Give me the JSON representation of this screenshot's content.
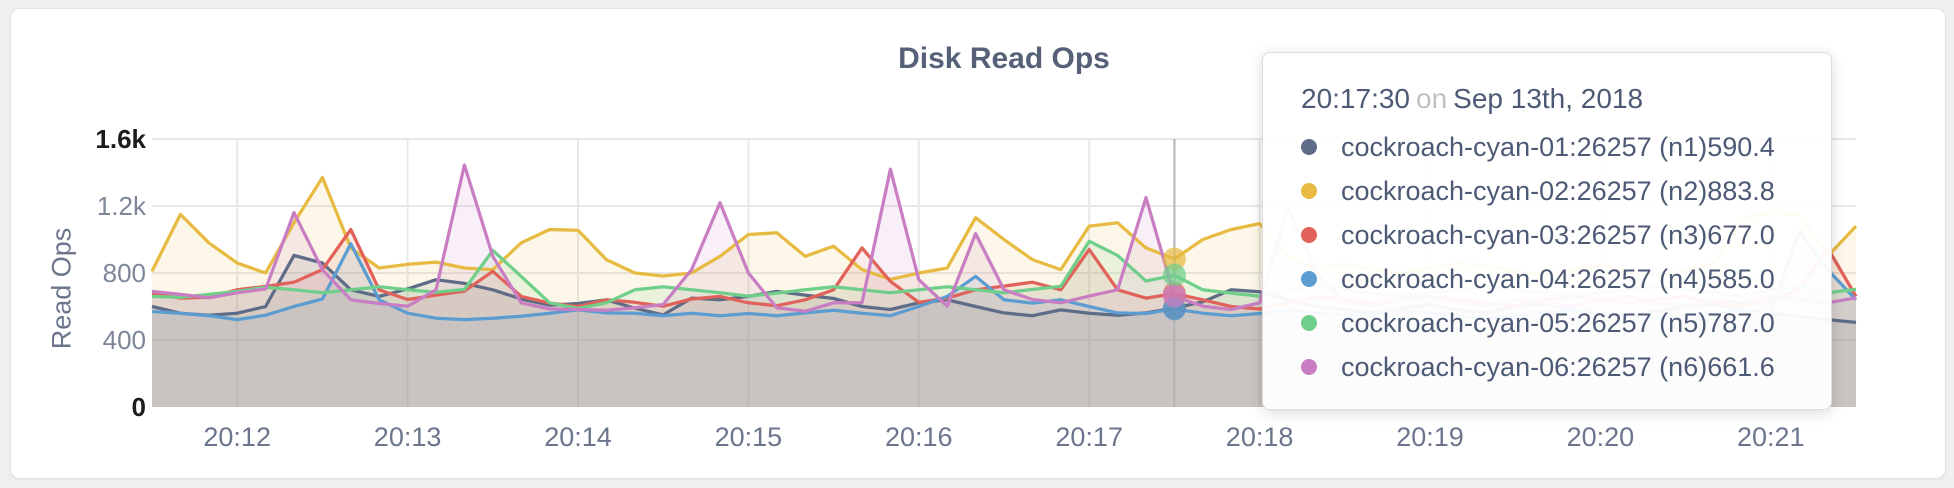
{
  "page": {
    "background": "#f0efed",
    "card_background": "#ffffff"
  },
  "chart_data": {
    "type": "line",
    "title": "Disk Read Ops",
    "ylabel": "Read Ops",
    "xlabel": "",
    "ylim": [
      0,
      1600
    ],
    "grid": true,
    "x_start": "20:11:30",
    "x_step_seconds": 10,
    "x_total_seconds": 600,
    "x_ticks": [
      {
        "label": "20:12",
        "offset_s": 30
      },
      {
        "label": "20:13",
        "offset_s": 90
      },
      {
        "label": "20:14",
        "offset_s": 150
      },
      {
        "label": "20:15",
        "offset_s": 210
      },
      {
        "label": "20:16",
        "offset_s": 270
      },
      {
        "label": "20:17",
        "offset_s": 330
      },
      {
        "label": "20:18",
        "offset_s": 390
      },
      {
        "label": "20:19",
        "offset_s": 450
      },
      {
        "label": "20:20",
        "offset_s": 510
      },
      {
        "label": "20:21",
        "offset_s": 570
      }
    ],
    "y_ticks": [
      {
        "label": "0",
        "value": 0,
        "emphasis": true
      },
      {
        "label": "400",
        "value": 400,
        "emphasis": false
      },
      {
        "label": "800",
        "value": 800,
        "emphasis": false
      },
      {
        "label": "1.2k",
        "value": 1200,
        "emphasis": false
      },
      {
        "label": "1.6k",
        "value": 1600,
        "emphasis": true
      }
    ],
    "hover": {
      "time": "20:17:30",
      "index": 36
    },
    "series": [
      {
        "name": "cockroach-cyan-01:26257 (n1)",
        "color": "#5F6C87",
        "values": [
          600,
          560,
          548,
          560,
          600,
          905,
          860,
          700,
          660,
          705,
          760,
          738,
          700,
          645,
          608,
          618,
          640,
          590,
          550,
          650,
          640,
          660,
          690,
          668,
          648,
          600,
          582,
          622,
          640,
          600,
          562,
          545,
          580,
          560,
          548,
          562,
          590.4,
          628,
          700,
          688,
          640,
          600,
          580,
          562,
          590,
          610,
          580,
          562,
          600,
          620,
          580,
          560,
          542,
          570,
          600,
          618,
          580,
          560,
          540,
          522,
          505
        ]
      },
      {
        "name": "cockroach-cyan-02:26257 (n2)",
        "color": "#E7BA41",
        "values": [
          810,
          1150,
          980,
          860,
          800,
          1100,
          1370,
          950,
          830,
          852,
          865,
          830,
          820,
          980,
          1060,
          1055,
          880,
          800,
          782,
          800,
          900,
          1030,
          1040,
          900,
          960,
          820,
          762,
          800,
          830,
          1130,
          1000,
          880,
          820,
          1080,
          1100,
          950,
          883.8,
          1000,
          1060,
          1095,
          900,
          830,
          852,
          820,
          800,
          830,
          860,
          840,
          810,
          790,
          820,
          845,
          810,
          782,
          812,
          862,
          1130,
          1160,
          1150,
          900,
          1080
        ]
      },
      {
        "name": "cockroach-cyan-03:26257 (n3)",
        "color": "#E0625A",
        "values": [
          680,
          650,
          655,
          700,
          720,
          745,
          820,
          1060,
          700,
          642,
          668,
          692,
          810,
          660,
          620,
          600,
          640,
          625,
          602,
          645,
          660,
          622,
          605,
          640,
          700,
          950,
          750,
          625,
          650,
          700,
          722,
          745,
          700,
          940,
          700,
          650,
          677,
          640,
          600,
          585,
          622,
          660,
          640,
          620,
          645,
          660,
          640,
          620,
          602,
          640,
          660,
          640,
          620,
          645,
          660,
          622,
          602,
          640,
          700,
          950,
          660
        ]
      },
      {
        "name": "cockroach-cyan-04:26257 (n4)",
        "color": "#5C9DD1",
        "values": [
          570,
          560,
          545,
          522,
          548,
          600,
          645,
          975,
          640,
          560,
          530,
          522,
          530,
          542,
          560,
          580,
          562,
          560,
          545,
          560,
          545,
          558,
          545,
          562,
          578,
          560,
          545,
          600,
          660,
          780,
          640,
          620,
          640,
          600,
          562,
          558,
          585,
          560,
          545,
          558,
          578,
          560,
          545,
          558,
          578,
          560,
          545,
          530,
          545,
          558,
          578,
          560,
          545,
          530,
          545,
          558,
          578,
          560,
          1050,
          820,
          640
        ]
      },
      {
        "name": "cockroach-cyan-05:26257 (n5)",
        "color": "#70CE8B",
        "values": [
          660,
          655,
          672,
          690,
          715,
          700,
          682,
          700,
          718,
          700,
          685,
          702,
          935,
          780,
          622,
          588,
          622,
          700,
          718,
          700,
          682,
          662,
          680,
          700,
          718,
          700,
          682,
          700,
          718,
          700,
          682,
          702,
          720,
          990,
          905,
          752,
          787,
          700,
          680,
          662,
          700,
          718,
          700,
          680,
          662,
          682,
          700,
          718,
          700,
          680,
          662,
          682,
          700,
          718,
          700,
          682,
          662,
          700,
          718,
          682,
          702
        ]
      },
      {
        "name": "cockroach-cyan-06:26257 (n6)",
        "color": "#C97EC3",
        "values": [
          690,
          672,
          652,
          682,
          705,
          1160,
          820,
          640,
          618,
          602,
          700,
          1445,
          900,
          622,
          585,
          582,
          578,
          592,
          612,
          820,
          1220,
          800,
          592,
          572,
          622,
          622,
          1420,
          760,
          602,
          1035,
          700,
          642,
          622,
          662,
          700,
          1250,
          661.6,
          602,
          582,
          622,
          1190,
          800,
          622,
          602,
          642,
          662,
          622,
          602,
          642,
          622,
          602,
          642,
          662,
          622,
          602,
          642,
          622,
          662,
          642,
          622,
          652
        ]
      }
    ]
  },
  "tooltip": {
    "time": "20:17:30",
    "connector": "on",
    "date": "Sep 13th, 2018",
    "rows": [
      {
        "label": "cockroach-cyan-01:26257 (n1)",
        "value": "590.4",
        "color": "#5F6C87"
      },
      {
        "label": "cockroach-cyan-02:26257 (n2)",
        "value": "883.8",
        "color": "#E7BA41"
      },
      {
        "label": "cockroach-cyan-03:26257 (n3)",
        "value": "677.0",
        "color": "#E0625A"
      },
      {
        "label": "cockroach-cyan-04:26257 (n4)",
        "value": "585.0",
        "color": "#5C9DD1"
      },
      {
        "label": "cockroach-cyan-05:26257 (n5)",
        "value": "787.0",
        "color": "#70CE8B"
      },
      {
        "label": "cockroach-cyan-06:26257 (n6)",
        "value": "661.6",
        "color": "#C97EC3"
      }
    ]
  }
}
